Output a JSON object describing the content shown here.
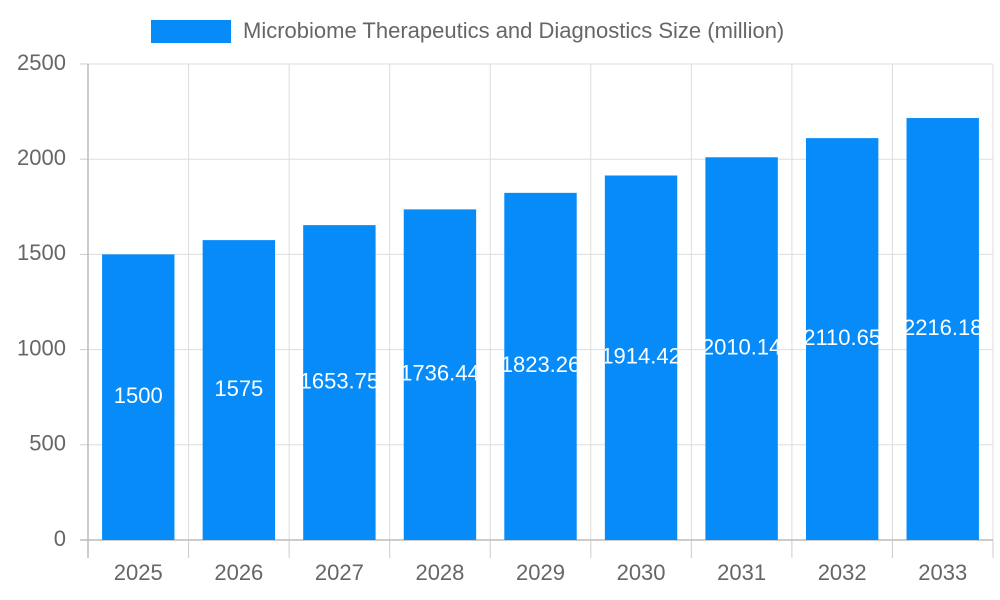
{
  "chart_data": {
    "type": "bar",
    "categories": [
      "2025",
      "2026",
      "2027",
      "2028",
      "2029",
      "2030",
      "2031",
      "2032",
      "2033"
    ],
    "series": [
      {
        "name": "Microbiome Therapeutics and Diagnostics Size (million)",
        "color": "#068bf8",
        "values": [
          1500,
          1575,
          1653.75,
          1736.44,
          1823.26,
          1914.42,
          2010.14,
          2110.65,
          2216.18
        ]
      }
    ],
    "ylim": [
      0,
      2500
    ],
    "yticks": [
      0,
      500,
      1000,
      1500,
      2000,
      2500
    ],
    "grid": true,
    "legend": "top"
  }
}
